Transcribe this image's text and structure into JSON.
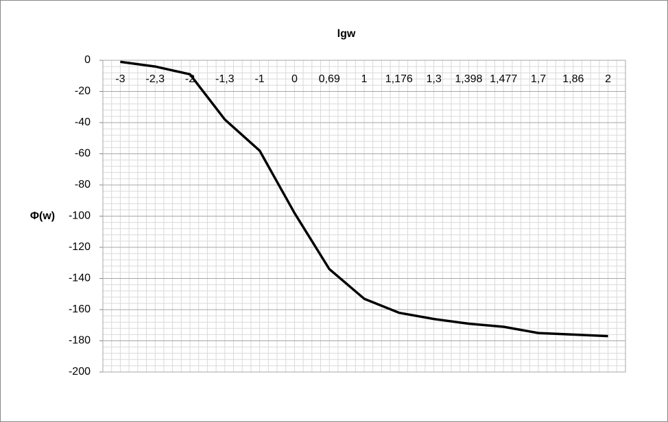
{
  "chart_data": {
    "type": "line",
    "x_label": "lgw",
    "y_label": "Φ(w)",
    "categories": [
      "-3",
      "-2,3",
      "-2",
      "-1,3",
      "-1",
      "0",
      "0,69",
      "1",
      "1,176",
      "1,3",
      "1,398",
      "1,477",
      "1,7",
      "1,86",
      "2"
    ],
    "series": [
      {
        "name": "Φ(w)",
        "color": "#000000",
        "values": [
          -1,
          -4,
          -9,
          -38,
          -58,
          -98,
          -134,
          -153,
          -162,
          -166,
          -169,
          -171,
          -175,
          -176,
          -177
        ]
      }
    ],
    "ylim": [
      -200,
      0
    ],
    "yticks": [
      0,
      -20,
      -40,
      -60,
      -80,
      -100,
      -120,
      -140,
      -160,
      -180,
      -200
    ],
    "grid": true
  }
}
